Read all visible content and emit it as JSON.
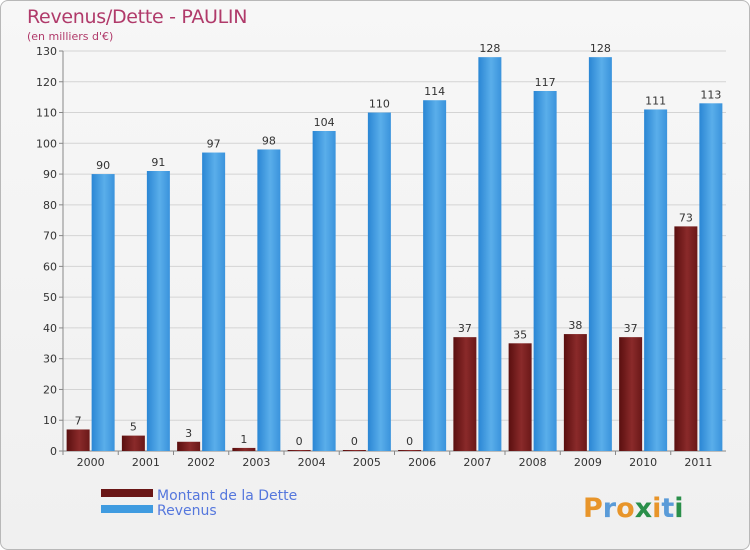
{
  "chart_data": {
    "type": "bar",
    "title": "Revenus/Dette - PAULIN",
    "subtitle": "(en milliers d'€)",
    "categories": [
      "2000",
      "2001",
      "2002",
      "2003",
      "2004",
      "2005",
      "2006",
      "2007",
      "2008",
      "2009",
      "2010",
      "2011"
    ],
    "series": [
      {
        "name": "Montant de la Dette",
        "color": "#7a1e1e",
        "values": [
          7,
          5,
          3,
          1,
          0,
          0,
          0,
          37,
          35,
          38,
          37,
          73
        ]
      },
      {
        "name": "Revenus",
        "color": "#3f9be0",
        "values": [
          90,
          91,
          97,
          98,
          104,
          110,
          114,
          128,
          117,
          128,
          111,
          113
        ]
      }
    ],
    "ylim": [
      0,
      130
    ],
    "yticks": [
      0,
      10,
      20,
      30,
      40,
      50,
      60,
      70,
      80,
      90,
      100,
      110,
      120,
      130
    ],
    "grid": true,
    "legend": "bottom-left",
    "xlabel": "",
    "ylabel": ""
  },
  "branding": {
    "logo_text": "Proxiti"
  }
}
